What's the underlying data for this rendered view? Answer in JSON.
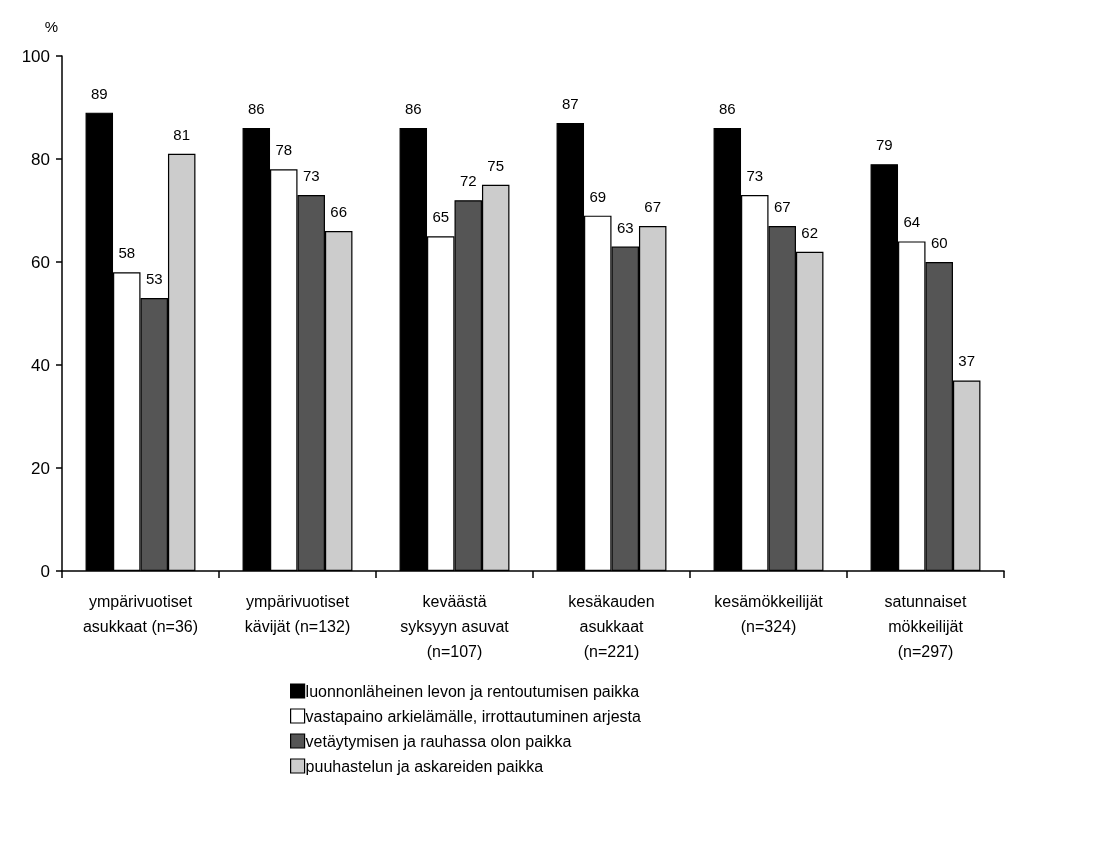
{
  "chart_data": {
    "type": "bar",
    "ylabel": "%",
    "categories": [
      "ympärivuotiset\nasukkaat (n=36)",
      "ympärivuotiset\nkävijät (n=132)",
      "keväästä\nsyksyyn asuvat\n(n=107)",
      "kesäkauden\nasukkaat\n(n=221)",
      "kesämökkeilijät\n(n=324)",
      "satunnaiset\nmökkeilijät\n(n=297)"
    ],
    "series": [
      {
        "name": "luonnonläheinen levon ja rentoutumisen paikka",
        "color": "#000000",
        "values": [
          89,
          86,
          86,
          87,
          86,
          79
        ]
      },
      {
        "name": "vastapaino arkielämälle, irrottautuminen arjesta",
        "color": "#ffffff",
        "values": [
          58,
          78,
          65,
          69,
          73,
          64
        ]
      },
      {
        "name": "vetäytymisen ja rauhassa olon paikka",
        "color": "#555555",
        "values": [
          53,
          73,
          72,
          63,
          67,
          60
        ]
      },
      {
        "name": "puuhastelun ja askareiden paikka",
        "color": "#cccccc",
        "values": [
          81,
          66,
          75,
          67,
          62,
          37
        ]
      }
    ],
    "ylim": [
      0,
      100
    ],
    "yticks": [
      0,
      20,
      40,
      60,
      80,
      100
    ],
    "data_labels": true,
    "grid": false,
    "legend": "bottom"
  }
}
